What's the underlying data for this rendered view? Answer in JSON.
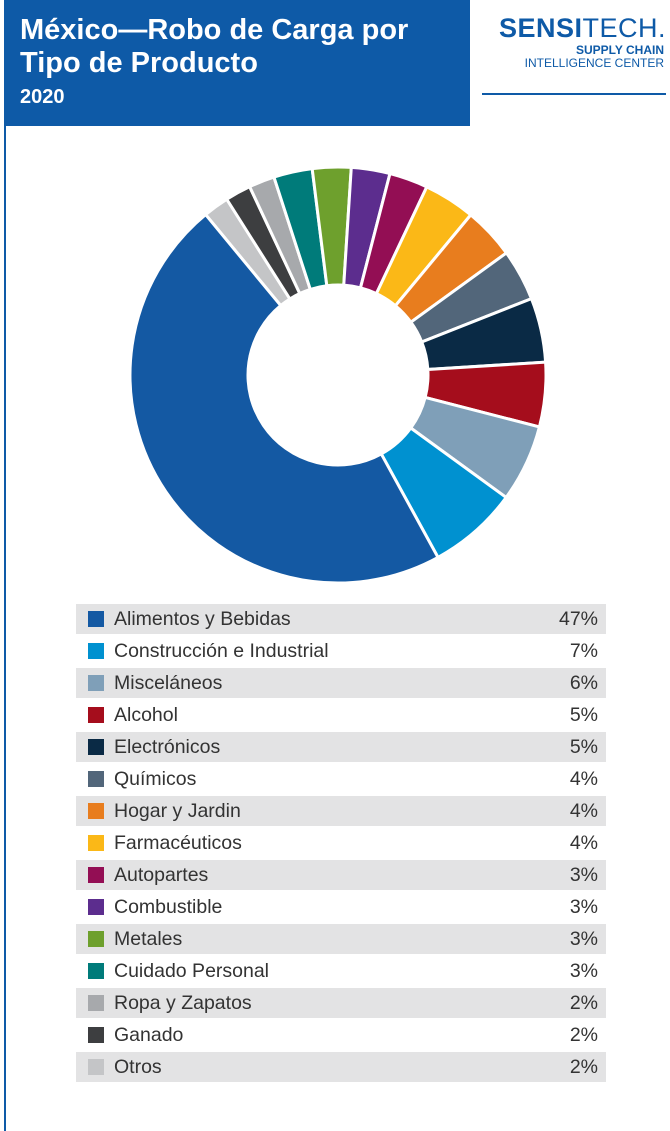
{
  "header": {
    "title": "México—Robo de Carga por Tipo de Producto",
    "year": "2020"
  },
  "logo": {
    "main_bold": "SENSI",
    "main_light": "TECH",
    "mark": ".",
    "line1": "SUPPLY CHAIN",
    "line2": "INTELLIGENCE CENTER"
  },
  "chart_data": {
    "type": "pie",
    "title": "México—Robo de Carga por Tipo de Producto",
    "subtitle": "2020",
    "donut": true,
    "legend_position": "bottom",
    "categories": [
      "Alimentos y Bebidas",
      "Construcción e Industrial",
      "Misceláneos",
      "Alcohol",
      "Electrónicos",
      "Químicos",
      "Hogar y Jardin",
      "Farmacéuticos",
      "Autopartes",
      "Combustible",
      "Metales",
      "Cuidado Personal",
      "Ropa y Zapatos",
      "Ganado",
      "Otros"
    ],
    "values": [
      47,
      7,
      6,
      5,
      5,
      4,
      4,
      4,
      3,
      3,
      3,
      3,
      2,
      2,
      2
    ],
    "labels": [
      "47%",
      "7%",
      "6%",
      "5%",
      "5%",
      "4%",
      "4%",
      "4%",
      "3%",
      "3%",
      "3%",
      "3%",
      "2%",
      "2%",
      "2%"
    ],
    "colors": [
      "#1459a3",
      "#0091d0",
      "#7f9fb8",
      "#a50d1c",
      "#0a2a45",
      "#52667a",
      "#e87d1e",
      "#fbb817",
      "#930e54",
      "#5c2d8e",
      "#6ea02d",
      "#007b7a",
      "#a7a9ac",
      "#3d3e40",
      "#c4c5c7"
    ]
  }
}
